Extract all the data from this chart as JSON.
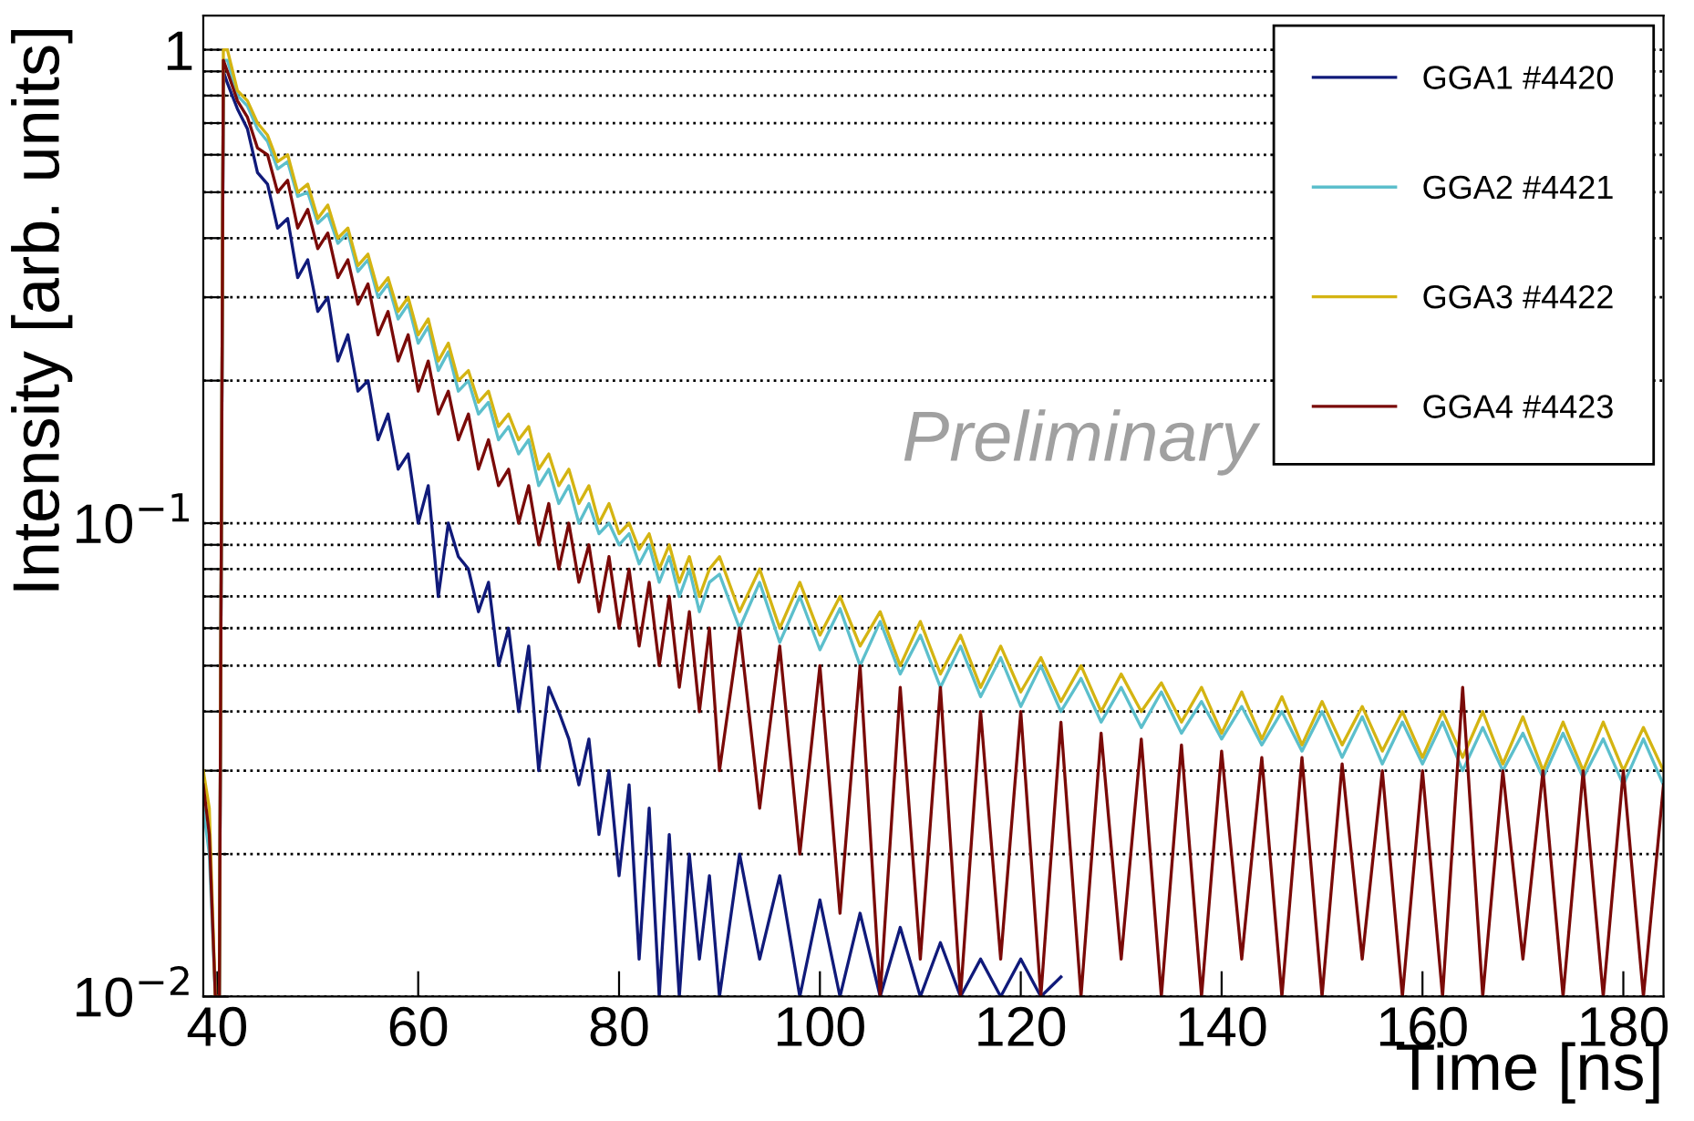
{
  "chart_data": {
    "type": "line",
    "xlabel": "Time [ns]",
    "ylabel": "Intensity [arb. units]",
    "annotations": [
      "Preliminary"
    ],
    "log": "y",
    "grid": "y",
    "legend": "top right",
    "line_style": "solid",
    "xlim": [
      38.6,
      184
    ],
    "xticks": [
      40,
      60,
      80,
      100,
      120,
      140,
      160,
      180
    ],
    "ylim": [
      0.01,
      1.18
    ],
    "yticks": [
      {
        "value": 0.01,
        "label": "10$^{−2}$"
      },
      {
        "value": 0.02,
        "label": null
      },
      {
        "value": 0.03,
        "label": null
      },
      {
        "value": 0.04,
        "label": null
      },
      {
        "value": 0.05,
        "label": null
      },
      {
        "value": 0.06,
        "label": null
      },
      {
        "value": 0.07,
        "label": null
      },
      {
        "value": 0.08,
        "label": null
      },
      {
        "value": 0.09,
        "label": null
      },
      {
        "value": 0.1,
        "label": "10$^{−1}$"
      },
      {
        "value": 0.2,
        "label": null
      },
      {
        "value": 0.3,
        "label": null
      },
      {
        "value": 0.4,
        "label": null
      },
      {
        "value": 0.5,
        "label": null
      },
      {
        "value": 0.6,
        "label": null
      },
      {
        "value": 0.7,
        "label": null
      },
      {
        "value": 0.8,
        "label": null
      },
      {
        "value": 0.9,
        "label": null
      },
      1
    ],
    "x": [
      38.6,
      39.2,
      39.8,
      40.2,
      40.6,
      41,
      42,
      43,
      44,
      45,
      46,
      47,
      48,
      49,
      50,
      51,
      52,
      53,
      54,
      55,
      56,
      57,
      58,
      59,
      60,
      61,
      62,
      63,
      64,
      65,
      66,
      67,
      68,
      69,
      70,
      71,
      72,
      73,
      74,
      75,
      76,
      77,
      78,
      79,
      80,
      81,
      82,
      83,
      84,
      85,
      86,
      87,
      88,
      89,
      90,
      92,
      94,
      96,
      98,
      100,
      102,
      104,
      106,
      108,
      110,
      112,
      114,
      116,
      118,
      120,
      122,
      124,
      126,
      128,
      130,
      132,
      134,
      136,
      138,
      140,
      142,
      144,
      146,
      148,
      150,
      152,
      154,
      156,
      158,
      160,
      162,
      164,
      166,
      168,
      170,
      172,
      174,
      176,
      178,
      180,
      182,
      184
    ],
    "series": [
      {
        "name": "GGA1 #4420",
        "color": "#101a7a",
        "values": [
          null,
          null,
          null,
          0.01,
          0.9,
          0.85,
          0.75,
          0.68,
          0.55,
          0.52,
          0.42,
          0.44,
          0.33,
          0.36,
          0.28,
          0.3,
          0.22,
          0.25,
          0.19,
          0.2,
          0.15,
          0.17,
          0.13,
          0.14,
          0.1,
          0.12,
          0.07,
          0.1,
          0.085,
          0.08,
          0.065,
          0.075,
          0.05,
          0.06,
          0.04,
          0.055,
          0.03,
          0.045,
          0.04,
          0.035,
          0.028,
          0.035,
          0.022,
          0.03,
          0.018,
          0.028,
          0.012,
          0.025,
          0.01,
          0.022,
          0.01,
          0.02,
          0.012,
          0.018,
          0.01,
          0.02,
          0.012,
          0.018,
          0.01,
          0.016,
          0.01,
          0.015,
          0.01,
          0.014,
          0.01,
          0.013,
          0.01,
          0.012,
          0.01,
          0.012,
          0.01,
          0.011,
          null,
          null,
          null,
          null,
          null,
          null,
          null,
          null,
          null,
          null,
          null,
          null,
          null,
          null,
          null,
          null,
          null,
          null,
          null,
          null,
          null,
          null,
          null,
          null,
          null,
          null,
          null,
          null,
          null,
          null
        ]
      },
      {
        "name": "GGA2 #4421",
        "color": "#5cbfcc",
        "values": [
          0.025,
          0.02,
          0.01,
          0.01,
          0.95,
          0.95,
          0.8,
          0.76,
          0.68,
          0.64,
          0.56,
          0.58,
          0.49,
          0.5,
          0.43,
          0.45,
          0.39,
          0.41,
          0.34,
          0.36,
          0.3,
          0.32,
          0.27,
          0.29,
          0.24,
          0.26,
          0.21,
          0.23,
          0.19,
          0.2,
          0.17,
          0.18,
          0.15,
          0.16,
          0.14,
          0.15,
          0.12,
          0.13,
          0.11,
          0.12,
          0.1,
          0.11,
          0.095,
          0.1,
          0.09,
          0.095,
          0.082,
          0.09,
          0.075,
          0.085,
          0.07,
          0.08,
          0.065,
          0.075,
          0.078,
          0.06,
          0.075,
          0.056,
          0.07,
          0.054,
          0.066,
          0.05,
          0.062,
          0.048,
          0.058,
          0.045,
          0.055,
          0.043,
          0.052,
          0.041,
          0.05,
          0.04,
          0.047,
          0.038,
          0.045,
          0.037,
          0.044,
          0.036,
          0.042,
          0.035,
          0.041,
          0.034,
          0.04,
          0.033,
          0.04,
          0.032,
          0.039,
          0.031,
          0.038,
          0.031,
          0.038,
          0.03,
          0.037,
          0.03,
          0.036,
          0.029,
          0.036,
          0.029,
          0.035,
          0.028,
          0.035,
          0.028
        ]
      },
      {
        "name": "GGA3 #4422",
        "color": "#d4b412",
        "values": [
          0.03,
          0.025,
          0.01,
          0.01,
          1.0,
          1.0,
          0.82,
          0.78,
          0.7,
          0.66,
          0.58,
          0.6,
          0.5,
          0.52,
          0.44,
          0.47,
          0.4,
          0.42,
          0.35,
          0.37,
          0.31,
          0.33,
          0.28,
          0.3,
          0.25,
          0.27,
          0.22,
          0.24,
          0.2,
          0.21,
          0.18,
          0.19,
          0.16,
          0.17,
          0.15,
          0.16,
          0.13,
          0.14,
          0.12,
          0.13,
          0.11,
          0.12,
          0.1,
          0.11,
          0.095,
          0.1,
          0.088,
          0.095,
          0.08,
          0.09,
          0.075,
          0.085,
          0.07,
          0.08,
          0.085,
          0.065,
          0.08,
          0.06,
          0.075,
          0.058,
          0.07,
          0.055,
          0.065,
          0.05,
          0.062,
          0.048,
          0.058,
          0.045,
          0.055,
          0.044,
          0.052,
          0.042,
          0.05,
          0.04,
          0.048,
          0.04,
          0.046,
          0.038,
          0.045,
          0.036,
          0.044,
          0.035,
          0.043,
          0.034,
          0.042,
          0.034,
          0.041,
          0.033,
          0.04,
          0.032,
          0.04,
          0.032,
          0.04,
          0.031,
          0.039,
          0.03,
          0.038,
          0.03,
          0.038,
          0.03,
          0.037,
          0.03
        ]
      },
      {
        "name": "GGA4 #4423",
        "color": "#7a0a08",
        "values": [
          0.028,
          0.022,
          0.01,
          0.01,
          0.95,
          0.9,
          0.78,
          0.72,
          0.62,
          0.6,
          0.5,
          0.53,
          0.42,
          0.46,
          0.38,
          0.41,
          0.33,
          0.36,
          0.29,
          0.32,
          0.25,
          0.28,
          0.22,
          0.25,
          0.19,
          0.22,
          0.17,
          0.19,
          0.15,
          0.17,
          0.13,
          0.15,
          0.12,
          0.13,
          0.1,
          0.12,
          0.09,
          0.11,
          0.08,
          0.1,
          0.075,
          0.09,
          0.065,
          0.085,
          0.06,
          0.08,
          0.055,
          0.075,
          0.05,
          0.07,
          0.045,
          0.065,
          0.04,
          0.06,
          0.03,
          0.06,
          0.025,
          0.055,
          0.02,
          0.05,
          0.015,
          0.05,
          0.01,
          0.045,
          0.012,
          0.045,
          0.01,
          0.04,
          0.012,
          0.04,
          0.01,
          0.038,
          0.01,
          0.036,
          0.012,
          0.035,
          0.01,
          0.034,
          0.01,
          0.033,
          0.012,
          0.032,
          0.01,
          0.032,
          0.01,
          0.031,
          0.012,
          0.03,
          0.01,
          0.03,
          0.01,
          0.045,
          0.01,
          0.03,
          0.012,
          0.03,
          0.01,
          0.03,
          0.01,
          0.03,
          0.01,
          0.028
        ]
      }
    ]
  }
}
